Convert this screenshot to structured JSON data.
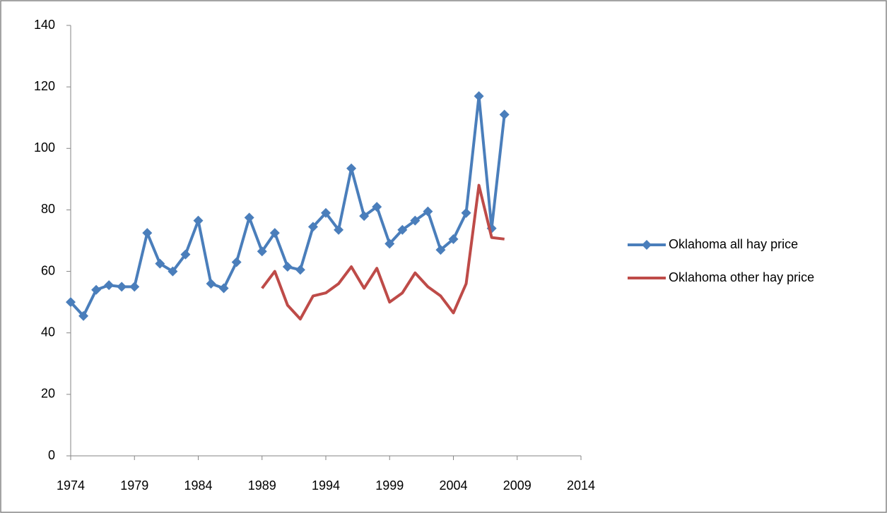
{
  "chart_data": {
    "type": "line",
    "xlim": [
      1974,
      2014
    ],
    "xticks": [
      1974,
      1979,
      1984,
      1989,
      1994,
      1999,
      2004,
      2009,
      2014
    ],
    "ylim": [
      0,
      140
    ],
    "yticks": [
      0,
      20,
      40,
      60,
      80,
      100,
      120,
      140
    ],
    "grid": false,
    "legend": "right",
    "series": [
      {
        "name": "Oklahoma all hay price",
        "color": "#4a7ebb",
        "marker": "diamond",
        "x": [
          1974,
          1975,
          1976,
          1977,
          1978,
          1979,
          1980,
          1981,
          1982,
          1983,
          1984,
          1985,
          1986,
          1987,
          1988,
          1989,
          1990,
          1991,
          1992,
          1993,
          1994,
          1995,
          1996,
          1997,
          1998,
          1999,
          2000,
          2001,
          2002,
          2003,
          2004,
          2005,
          2006,
          2007,
          2008
        ],
        "values": [
          50,
          45.5,
          54,
          55.5,
          55,
          55,
          72.5,
          62.5,
          60,
          65.5,
          76.5,
          56,
          54.5,
          63,
          77.5,
          66.5,
          72.5,
          61.5,
          60.5,
          74.5,
          79,
          73.5,
          93.5,
          78,
          81,
          69,
          73.5,
          76.5,
          79.5,
          67,
          70.5,
          79,
          117,
          74,
          111
        ]
      },
      {
        "name": "Oklahoma other hay price",
        "color": "#be4b48",
        "marker": "none",
        "x": [
          1989,
          1990,
          1991,
          1992,
          1993,
          1994,
          1995,
          1996,
          1997,
          1998,
          1999,
          2000,
          2001,
          2002,
          2003,
          2004,
          2005,
          2006,
          2007,
          2008
        ],
        "values": [
          54.5,
          60,
          49,
          44.5,
          52,
          53,
          56,
          61.5,
          54.5,
          61,
          50,
          53,
          59.5,
          55,
          52,
          46.5,
          56,
          88,
          71,
          70.5
        ]
      }
    ]
  }
}
